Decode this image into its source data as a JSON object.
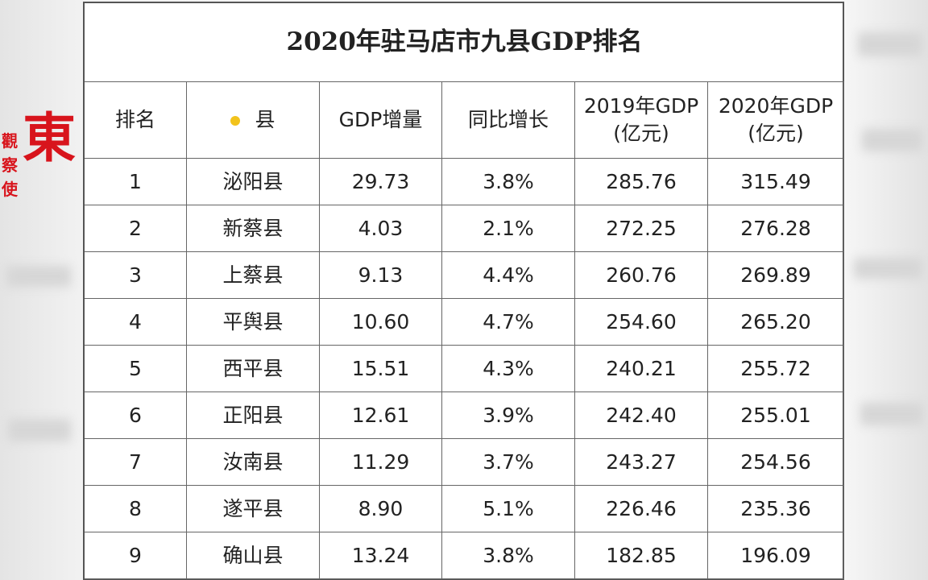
{
  "watermark": {
    "main": "東",
    "small": [
      "觀",
      "察",
      "使"
    ]
  },
  "table": {
    "title": "2020年驻马店市九县GDP排名",
    "headers": [
      [
        "排名"
      ],
      [
        "县"
      ],
      [
        "GDP增量"
      ],
      [
        "同比增长"
      ],
      [
        "2019年GDP",
        "(亿元)"
      ],
      [
        "2020年GDP",
        "(亿元)"
      ]
    ],
    "rows": [
      [
        "1",
        "泌阳县",
        "29.73",
        "3.8%",
        "285.76",
        "315.49"
      ],
      [
        "2",
        "新蔡县",
        "4.03",
        "2.1%",
        "272.25",
        "276.28"
      ],
      [
        "3",
        "上蔡县",
        "9.13",
        "4.4%",
        "260.76",
        "269.89"
      ],
      [
        "4",
        "平舆县",
        "10.60",
        "4.7%",
        "254.60",
        "265.20"
      ],
      [
        "5",
        "西平县",
        "15.51",
        "4.3%",
        "240.21",
        "255.72"
      ],
      [
        "6",
        "正阳县",
        "12.61",
        "3.9%",
        "242.40",
        "255.01"
      ],
      [
        "7",
        "汝南县",
        "11.29",
        "3.7%",
        "243.27",
        "254.56"
      ],
      [
        "8",
        "遂平县",
        "8.90",
        "5.1%",
        "226.46",
        "235.36"
      ],
      [
        "9",
        "确山县",
        "13.24",
        "3.8%",
        "182.85",
        "196.09"
      ]
    ]
  }
}
